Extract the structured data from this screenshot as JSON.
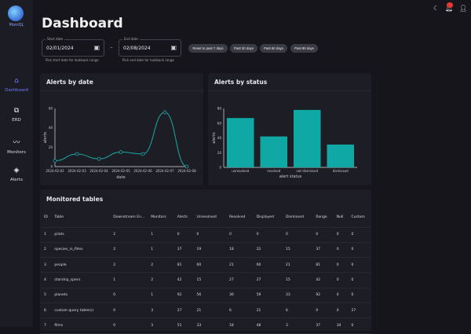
{
  "app": {
    "name": "MoniQL"
  },
  "sidebar": {
    "items": [
      {
        "label": "Dashboard",
        "icon": "home-icon",
        "active": true
      },
      {
        "label": "ERD",
        "icon": "diagram-icon"
      },
      {
        "label": "Monitors",
        "icon": "monitor-icon"
      },
      {
        "label": "Alerts",
        "icon": "alert-icon"
      }
    ]
  },
  "header": {
    "title": "Dashboard",
    "icons": [
      "dark-mode-icon",
      "notifications-icon",
      "account-icon"
    ]
  },
  "filters": {
    "start": {
      "label": "Start date",
      "value": "02/01/2024",
      "help": "Pick start date for lookback range"
    },
    "separator": "–",
    "end": {
      "label": "End date",
      "value": "02/08/2024",
      "help": "Pick end date for lookback range"
    },
    "buttons": [
      "Reset to past 7 days",
      "Past 30 days",
      "Past 60 days",
      "Past 90 days"
    ]
  },
  "colors": {
    "accent": "#1aa9a4",
    "nav_active": "#6f7bff"
  },
  "chart_data": [
    {
      "type": "line",
      "title": "Alerts by date",
      "xlabel": "date",
      "ylabel": "alerts",
      "categories": [
        "2024-02-02",
        "2024-02-03",
        "2024-02-04",
        "2024-02-05",
        "2024-02-06",
        "2024-02-07",
        "2024-02-08"
      ],
      "values": [
        6,
        13,
        8,
        15,
        13,
        56,
        0
      ],
      "ylim": [
        0,
        60
      ],
      "yticks": [
        0,
        20,
        40,
        60
      ],
      "grid": false
    },
    {
      "type": "bar",
      "title": "Alerts by status",
      "xlabel": "alert status",
      "ylabel": "alerts",
      "categories": [
        "unresolved",
        "resolved",
        "not dismissed",
        "dismissed"
      ],
      "values": [
        67,
        42,
        78,
        31
      ],
      "ylim": [
        0,
        80
      ],
      "yticks": [
        0,
        20,
        40,
        60,
        80
      ],
      "grid": false
    }
  ],
  "table": {
    "title": "Monitored tables",
    "columns": [
      "ID",
      "Table",
      "Downstream En...",
      "Monitors",
      "Alerts",
      "Unresolved",
      "Resolved",
      "Displayed",
      "Dismissed",
      "Range",
      "Null",
      "Custom"
    ],
    "rows": [
      [
        "1",
        "pilots",
        "2",
        "1",
        "0",
        "0",
        "0",
        "0",
        "0",
        "0",
        "0",
        "0"
      ],
      [
        "2",
        "species_in_films",
        "2",
        "1",
        "37",
        "19",
        "18",
        "22",
        "15",
        "37",
        "0",
        "0"
      ],
      [
        "3",
        "people",
        "2",
        "2",
        "81",
        "60",
        "21",
        "60",
        "21",
        "81",
        "0",
        "0"
      ],
      [
        "4",
        "starship_specs",
        "1",
        "2",
        "42",
        "15",
        "27",
        "27",
        "15",
        "42",
        "0",
        "0"
      ],
      [
        "5",
        "planets",
        "0",
        "1",
        "92",
        "56",
        "36",
        "59",
        "33",
        "92",
        "0",
        "0"
      ],
      [
        "6",
        "custom query table(s)",
        "0",
        "3",
        "27",
        "21",
        "6",
        "21",
        "6",
        "0",
        "0",
        "27"
      ],
      [
        "7",
        "films",
        "0",
        "3",
        "51",
        "33",
        "18",
        "48",
        "3",
        "37",
        "34",
        "0"
      ]
    ]
  }
}
